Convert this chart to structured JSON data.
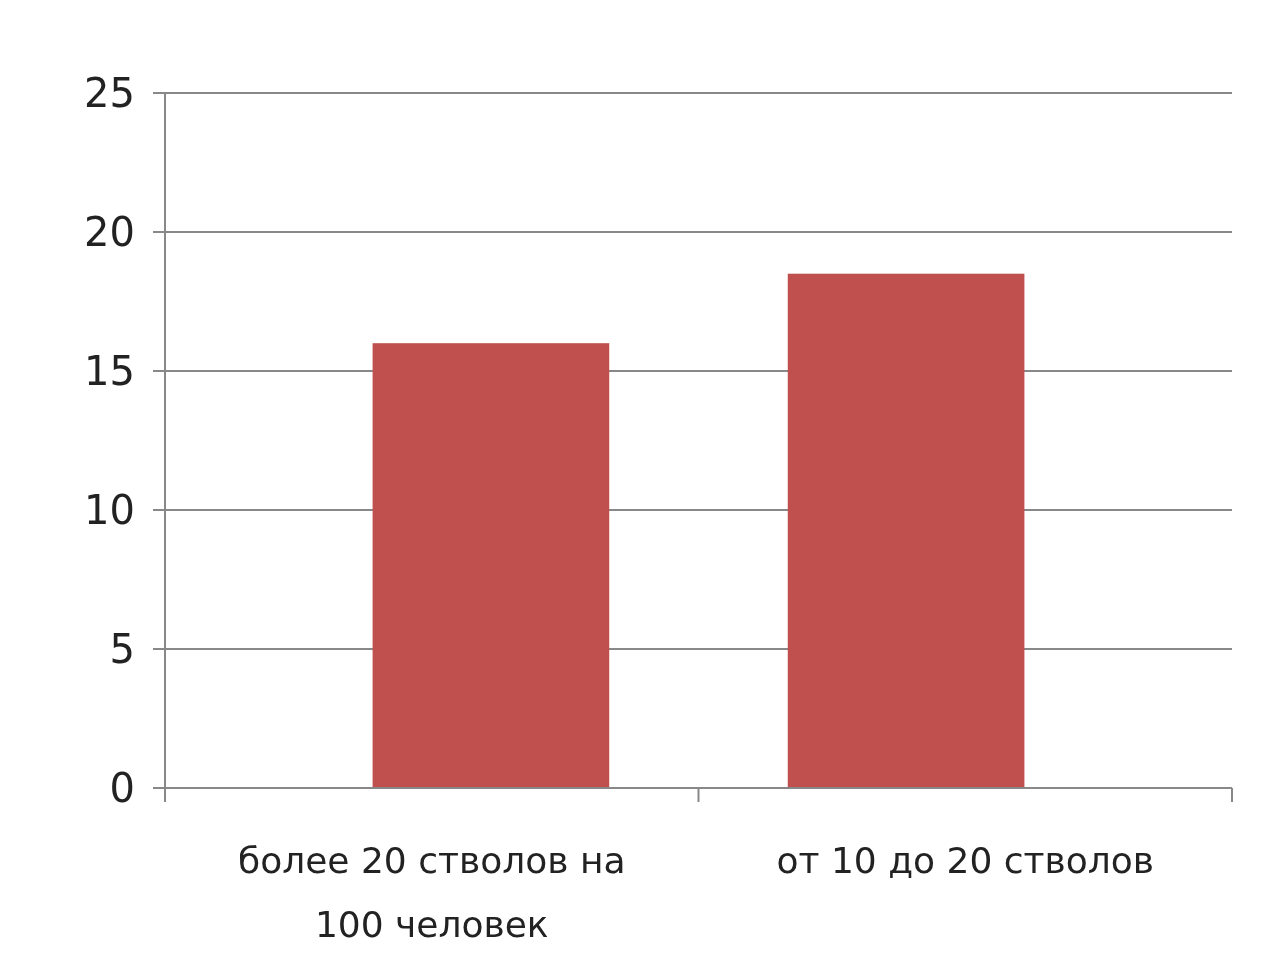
{
  "chart_data": {
    "type": "bar",
    "categories": [
      "более 20 стволов на 100 человек",
      "от 10 до 20 стволов"
    ],
    "values": [
      16,
      18.5
    ],
    "color": "#c0504d",
    "ylim": [
      0,
      25
    ],
    "yticks": [
      0,
      5,
      10,
      15,
      20,
      25
    ],
    "grid": "y"
  }
}
